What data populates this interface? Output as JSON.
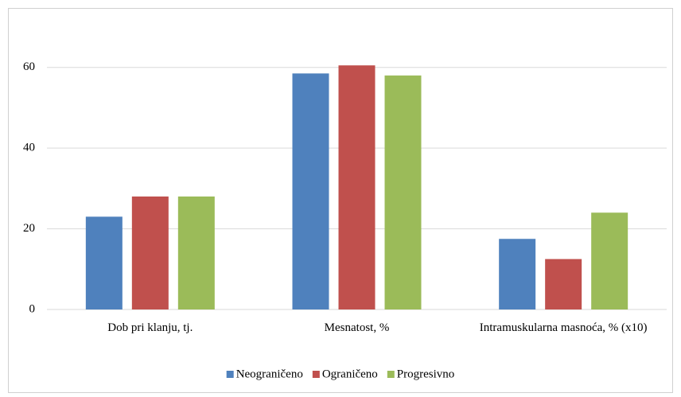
{
  "chart_data": {
    "type": "bar",
    "categories": [
      "Dob pri klanju, tj.",
      "Mesnatost, %",
      "Intramuskularna masnoća, % (x10)"
    ],
    "series": [
      {
        "name": "Neograničeno",
        "color": "#4f81bd",
        "values": [
          23,
          58.5,
          17.5
        ]
      },
      {
        "name": "Ograničeno",
        "color": "#c0504d",
        "values": [
          28,
          60.5,
          12.5
        ]
      },
      {
        "name": "Progresivno",
        "color": "#9bbb59",
        "values": [
          28,
          58,
          24
        ]
      }
    ],
    "ylim": [
      0,
      70
    ],
    "yticks": [
      0,
      20,
      40,
      60
    ],
    "grid": true,
    "legend": "bottom"
  }
}
